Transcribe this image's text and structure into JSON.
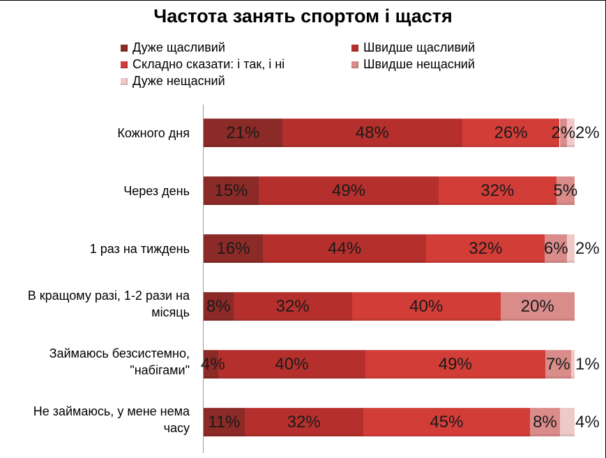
{
  "chart_data": {
    "type": "bar",
    "orientation": "horizontal",
    "stacked": true,
    "title": "Частота занять спортом і щастя",
    "categories": [
      "Кожного дня",
      "Через день",
      "1 раз на тиждень",
      "В кращому разі, 1-2 рази на місяць",
      "Займаюсь безсистемно, \"набігами\"",
      "Не займаюсь, у мене нема часу"
    ],
    "category_lines": [
      [
        "Кожного дня"
      ],
      [
        "Через день"
      ],
      [
        "1 раз на тиждень"
      ],
      [
        "В кращому разі, 1-2 рази на",
        "місяць"
      ],
      [
        "Займаюсь безсистемно,",
        "\"набігами\""
      ],
      [
        "Не займаюсь, у мене нема",
        "часу"
      ]
    ],
    "series": [
      {
        "name": "Дуже щасливий",
        "color": "#8b2a27",
        "values": [
          21,
          15,
          16,
          8,
          4,
          11
        ],
        "labels": [
          "21%",
          "15%",
          "16%",
          "8%",
          "4%",
          "11%"
        ]
      },
      {
        "name": "Швидше щасливий",
        "color": "#b5302c",
        "values": [
          48,
          49,
          44,
          32,
          40,
          32
        ],
        "labels": [
          "48%",
          "49%",
          "44%",
          "32%",
          "40%",
          "32%"
        ]
      },
      {
        "name": "Складно сказати: і так, і ні",
        "color": "#d23d38",
        "values": [
          26,
          32,
          32,
          40,
          49,
          45
        ],
        "labels": [
          "26%",
          "32%",
          "32%",
          "40%",
          "49%",
          "45%"
        ]
      },
      {
        "name": "Швидше нещасний",
        "color": "#d98c8a",
        "values": [
          2,
          5,
          6,
          20,
          7,
          8
        ],
        "labels": [
          "2%",
          "5%",
          "6%",
          "20%",
          "7%",
          "8%"
        ]
      },
      {
        "name": "Дуже нещасний",
        "color": "#eec9c8",
        "values": [
          2,
          0,
          2,
          0,
          1,
          4
        ],
        "labels": [
          "2%",
          "",
          "2%",
          "",
          "1%",
          "4%"
        ]
      }
    ],
    "xlim": [
      0,
      100
    ],
    "legend_position": "top",
    "grid": false
  }
}
